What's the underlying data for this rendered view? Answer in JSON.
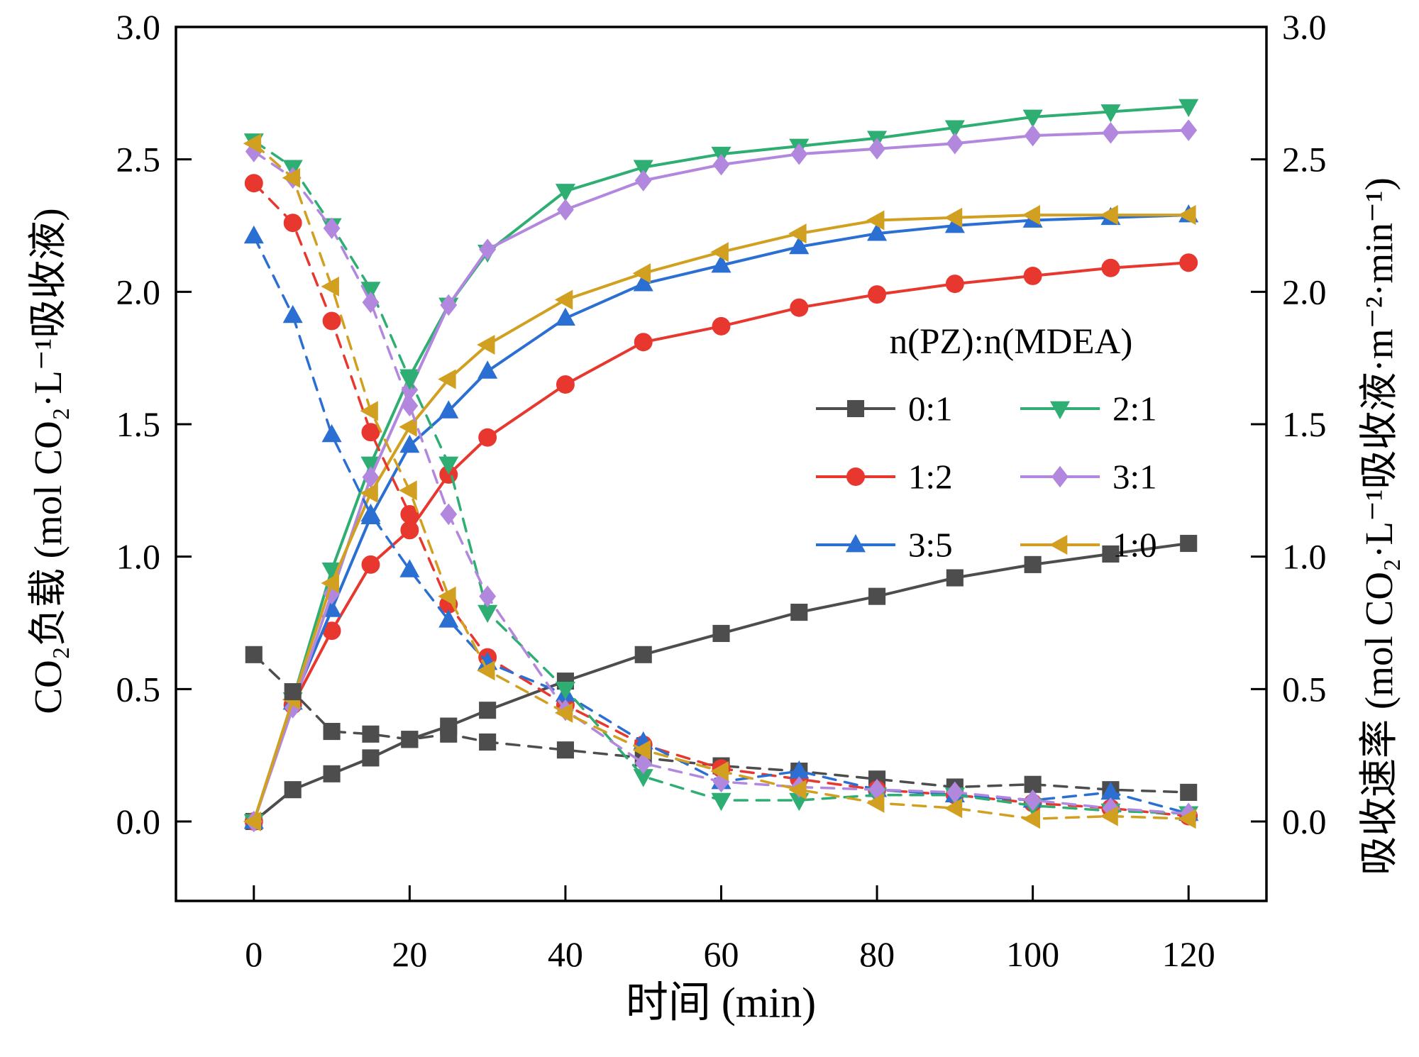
{
  "figure": {
    "background": "#ffffff"
  },
  "chart_data": {
    "type": "line",
    "title": "",
    "xlabel": "时间 (min)",
    "ylabel_left": "CO₂负载 (mol CO₂·L⁻¹吸收液)",
    "ylabel_right": "吸收速率 (mol CO₂·L⁻¹吸收液·m⁻²·min⁻¹)",
    "xlim": [
      -10,
      130
    ],
    "ylim": [
      -0.3,
      3.0
    ],
    "x_ticks": [
      0,
      20,
      40,
      60,
      80,
      100,
      120
    ],
    "y_ticks": [
      0.0,
      0.5,
      1.0,
      1.5,
      2.0,
      2.5,
      3.0
    ],
    "grid": false,
    "x": [
      0,
      5,
      10,
      15,
      20,
      25,
      30,
      40,
      50,
      60,
      70,
      80,
      90,
      100,
      110,
      120
    ],
    "legend": {
      "title": "n(PZ):n(MDEA)",
      "order": [
        "0:1",
        "2:1",
        "1:2",
        "3:1",
        "3:5",
        "1:0"
      ],
      "position": "center-right"
    },
    "colors": {
      "0:1": "#4d4d4d",
      "1:2": "#e8372f",
      "3:5": "#2b6fd3",
      "2:1": "#2fae73",
      "3:1": "#b287de",
      "1:0": "#d2a020"
    },
    "markers": {
      "0:1": "square",
      "1:2": "circle",
      "3:5": "triangle-up",
      "2:1": "triangle-down",
      "3:1": "diamond",
      "1:0": "triangle-left"
    },
    "series": [
      {
        "key": "0:1",
        "role": "loading",
        "axis": "left",
        "line": "solid",
        "marker": "square",
        "color": "#4d4d4d",
        "values": [
          0.0,
          0.12,
          0.18,
          0.24,
          0.31,
          0.36,
          0.42,
          0.53,
          0.63,
          0.71,
          0.79,
          0.85,
          0.92,
          0.97,
          1.01,
          1.05
        ]
      },
      {
        "key": "1:2",
        "role": "loading",
        "axis": "left",
        "line": "solid",
        "marker": "circle",
        "color": "#e8372f",
        "values": [
          0.0,
          0.44,
          0.72,
          0.97,
          1.1,
          1.31,
          1.45,
          1.65,
          1.81,
          1.87,
          1.94,
          1.99,
          2.03,
          2.06,
          2.09,
          2.11
        ]
      },
      {
        "key": "3:5",
        "role": "loading",
        "axis": "left",
        "line": "solid",
        "marker": "triangle-up",
        "color": "#2b6fd3",
        "values": [
          0.0,
          0.45,
          0.8,
          1.15,
          1.42,
          1.55,
          1.7,
          1.9,
          2.03,
          2.1,
          2.17,
          2.22,
          2.25,
          2.27,
          2.28,
          2.29
        ]
      },
      {
        "key": "2:1",
        "role": "loading",
        "axis": "left",
        "line": "solid",
        "marker": "triangle-down",
        "color": "#2fae73",
        "values": [
          0.0,
          0.46,
          0.95,
          1.35,
          1.68,
          1.95,
          2.15,
          2.38,
          2.47,
          2.52,
          2.55,
          2.58,
          2.62,
          2.66,
          2.68,
          2.7
        ]
      },
      {
        "key": "3:1",
        "role": "loading",
        "axis": "left",
        "line": "solid",
        "marker": "diamond",
        "color": "#b287de",
        "values": [
          0.0,
          0.43,
          0.86,
          1.3,
          1.63,
          1.95,
          2.16,
          2.31,
          2.42,
          2.48,
          2.52,
          2.54,
          2.56,
          2.59,
          2.6,
          2.61
        ]
      },
      {
        "key": "1:0",
        "role": "loading",
        "axis": "left",
        "line": "solid",
        "marker": "triangle-left",
        "color": "#d2a020",
        "values": [
          0.0,
          0.46,
          0.9,
          1.24,
          1.49,
          1.67,
          1.8,
          1.97,
          2.07,
          2.15,
          2.22,
          2.27,
          2.28,
          2.29,
          2.29,
          2.29
        ]
      },
      {
        "key": "0:1",
        "role": "rate",
        "axis": "right",
        "line": "dashed",
        "marker": "square",
        "color": "#4d4d4d",
        "values": [
          0.63,
          0.49,
          0.34,
          0.33,
          0.31,
          0.33,
          0.3,
          0.27,
          0.24,
          0.21,
          0.19,
          0.16,
          0.13,
          0.14,
          0.12,
          0.11
        ]
      },
      {
        "key": "1:2",
        "role": "rate",
        "axis": "right",
        "line": "dashed",
        "marker": "circle",
        "color": "#e8372f",
        "values": [
          2.41,
          2.26,
          1.89,
          1.47,
          1.16,
          0.82,
          0.62,
          0.44,
          0.29,
          0.2,
          0.16,
          0.12,
          0.1,
          0.07,
          0.05,
          0.02
        ]
      },
      {
        "key": "3:5",
        "role": "rate",
        "axis": "right",
        "line": "dashed",
        "marker": "triangle-up",
        "color": "#2b6fd3",
        "values": [
          2.21,
          1.91,
          1.46,
          1.16,
          0.95,
          0.76,
          0.6,
          0.48,
          0.3,
          0.15,
          0.19,
          0.12,
          0.1,
          0.08,
          0.11,
          0.03
        ]
      },
      {
        "key": "2:1",
        "role": "rate",
        "axis": "right",
        "line": "dashed",
        "marker": "triangle-down",
        "color": "#2fae73",
        "values": [
          2.57,
          2.47,
          2.25,
          2.01,
          1.67,
          1.35,
          0.79,
          0.5,
          0.17,
          0.08,
          0.08,
          0.1,
          0.1,
          0.06,
          0.04,
          0.03
        ]
      },
      {
        "key": "3:1",
        "role": "rate",
        "axis": "right",
        "line": "dashed",
        "marker": "diamond",
        "color": "#b287de",
        "values": [
          2.53,
          2.43,
          2.24,
          1.96,
          1.57,
          1.16,
          0.85,
          0.42,
          0.22,
          0.15,
          0.13,
          0.12,
          0.11,
          0.08,
          0.05,
          0.03
        ]
      },
      {
        "key": "1:0",
        "role": "rate",
        "axis": "right",
        "line": "dashed",
        "marker": "triangle-left",
        "color": "#d2a020",
        "values": [
          2.56,
          2.43,
          2.02,
          1.55,
          1.25,
          0.85,
          0.57,
          0.41,
          0.27,
          0.19,
          0.12,
          0.07,
          0.05,
          0.01,
          0.02,
          0.01
        ]
      }
    ]
  }
}
